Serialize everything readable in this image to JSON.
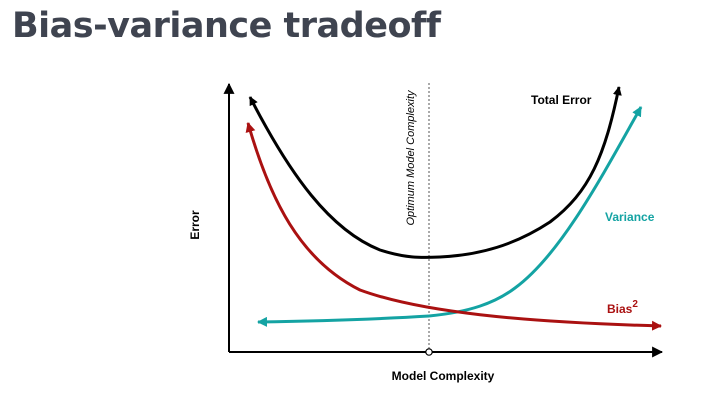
{
  "slide": {
    "title": "Bias-variance tradeoff"
  },
  "figure": {
    "x_axis_label": "Model Complexity",
    "y_axis_label": "Error",
    "optimum_label": "Optimum Model Complexity",
    "curves": {
      "total_error": {
        "label": "Total Error",
        "color": "#000000"
      },
      "variance": {
        "label": "Variance",
        "color": "#14a3a3"
      },
      "bias": {
        "label": "Bias",
        "exponent": "2",
        "color": "#aa1111"
      }
    },
    "colors": {
      "axis": "#000000",
      "title": "#3f4450"
    }
  }
}
